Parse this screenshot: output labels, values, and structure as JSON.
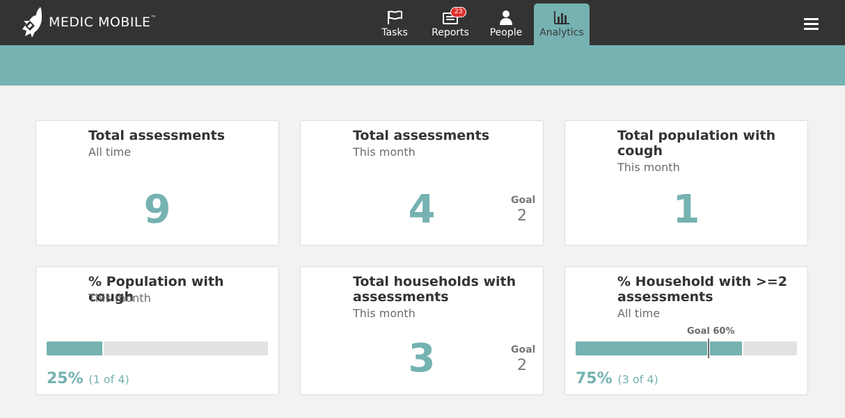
{
  "header": {
    "logo_text": "MEDIC MOBILE",
    "logo_tm": "™",
    "tabs": [
      {
        "label": "Tasks",
        "icon": "flag-icon"
      },
      {
        "label": "Reports",
        "icon": "reports-icon",
        "badge": "23"
      },
      {
        "label": "People",
        "icon": "person-icon"
      },
      {
        "label": "Analytics",
        "icon": "bar-chart-icon",
        "active": true
      }
    ],
    "menu_icon": "hamburger-menu-icon"
  },
  "colors": {
    "topbar": "#333333",
    "accent": "#75b2b1",
    "badge": "#e0312f",
    "background": "#f2f2f2"
  },
  "targets": [
    {
      "title": "Total assessments",
      "subtitle": "All time",
      "value": "9"
    },
    {
      "title": "Total assessments",
      "subtitle": "This month",
      "value": "4",
      "goal_label": "Goal",
      "goal_value": "2"
    },
    {
      "title": "Total population with cough",
      "subtitle": "This month",
      "value": "1"
    },
    {
      "title": "% Population with cough",
      "subtitle": "This month",
      "percent": "25%",
      "detail": "(1 of 4)",
      "progress": 0.25
    },
    {
      "title": "Total households with assessments",
      "subtitle": "This month",
      "value": "3",
      "goal_label": "Goal",
      "goal_value": "2"
    },
    {
      "title": "% Household with >=2 assessments",
      "subtitle": "All time",
      "percent": "75%",
      "detail": "(3 of 4)",
      "progress": 0.75,
      "goal_label": "Goal 60%",
      "goal_fraction": 0.6
    }
  ]
}
